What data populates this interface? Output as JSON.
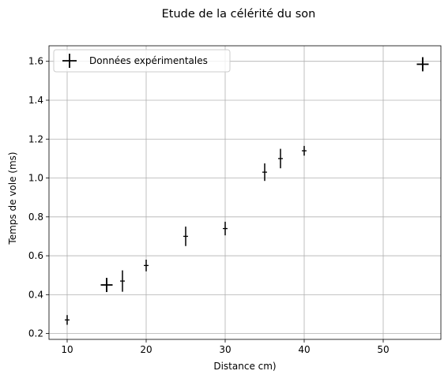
{
  "chart_data": {
    "type": "scatter",
    "title": "Etude de la célérité du son",
    "xlabel": "Distance cm)",
    "ylabel": "Temps de vole (ms)",
    "xlim": [
      7.7,
      57.3
    ],
    "ylim": [
      0.17,
      1.68
    ],
    "xticks": [
      10,
      20,
      30,
      40,
      50
    ],
    "yticks": [
      0.2,
      0.4,
      0.6,
      0.8,
      1.0,
      1.2,
      1.4,
      1.6
    ],
    "ytick_labels": [
      "0.2",
      "0.4",
      "0.6",
      "0.8",
      "1.0",
      "1.2",
      "1.4",
      "1.6"
    ],
    "grid": true,
    "legend": {
      "placement": "top-left",
      "entries": [
        "Données expérimentales"
      ]
    },
    "series": [
      {
        "name": "Données expérimentales",
        "color": "#000000",
        "marker": "plus",
        "points": [
          {
            "x": 10,
            "y": 0.27,
            "yerr": 0.025,
            "xerr": 0
          },
          {
            "x": 15,
            "y": 0.45,
            "yerr": 0.035,
            "xerr": 0.75
          },
          {
            "x": 17,
            "y": 0.47,
            "yerr": 0.055,
            "xerr": 0
          },
          {
            "x": 20,
            "y": 0.55,
            "yerr": 0.03,
            "xerr": 0
          },
          {
            "x": 25,
            "y": 0.7,
            "yerr": 0.05,
            "xerr": 0
          },
          {
            "x": 30,
            "y": 0.74,
            "yerr": 0.035,
            "xerr": 0
          },
          {
            "x": 35,
            "y": 1.03,
            "yerr": 0.045,
            "xerr": 0
          },
          {
            "x": 37,
            "y": 1.1,
            "yerr": 0.05,
            "xerr": 0
          },
          {
            "x": 40,
            "y": 1.14,
            "yerr": 0.025,
            "xerr": 0
          },
          {
            "x": 55,
            "y": 1.585,
            "yerr": 0.03,
            "xerr": 0.75
          }
        ]
      }
    ]
  }
}
